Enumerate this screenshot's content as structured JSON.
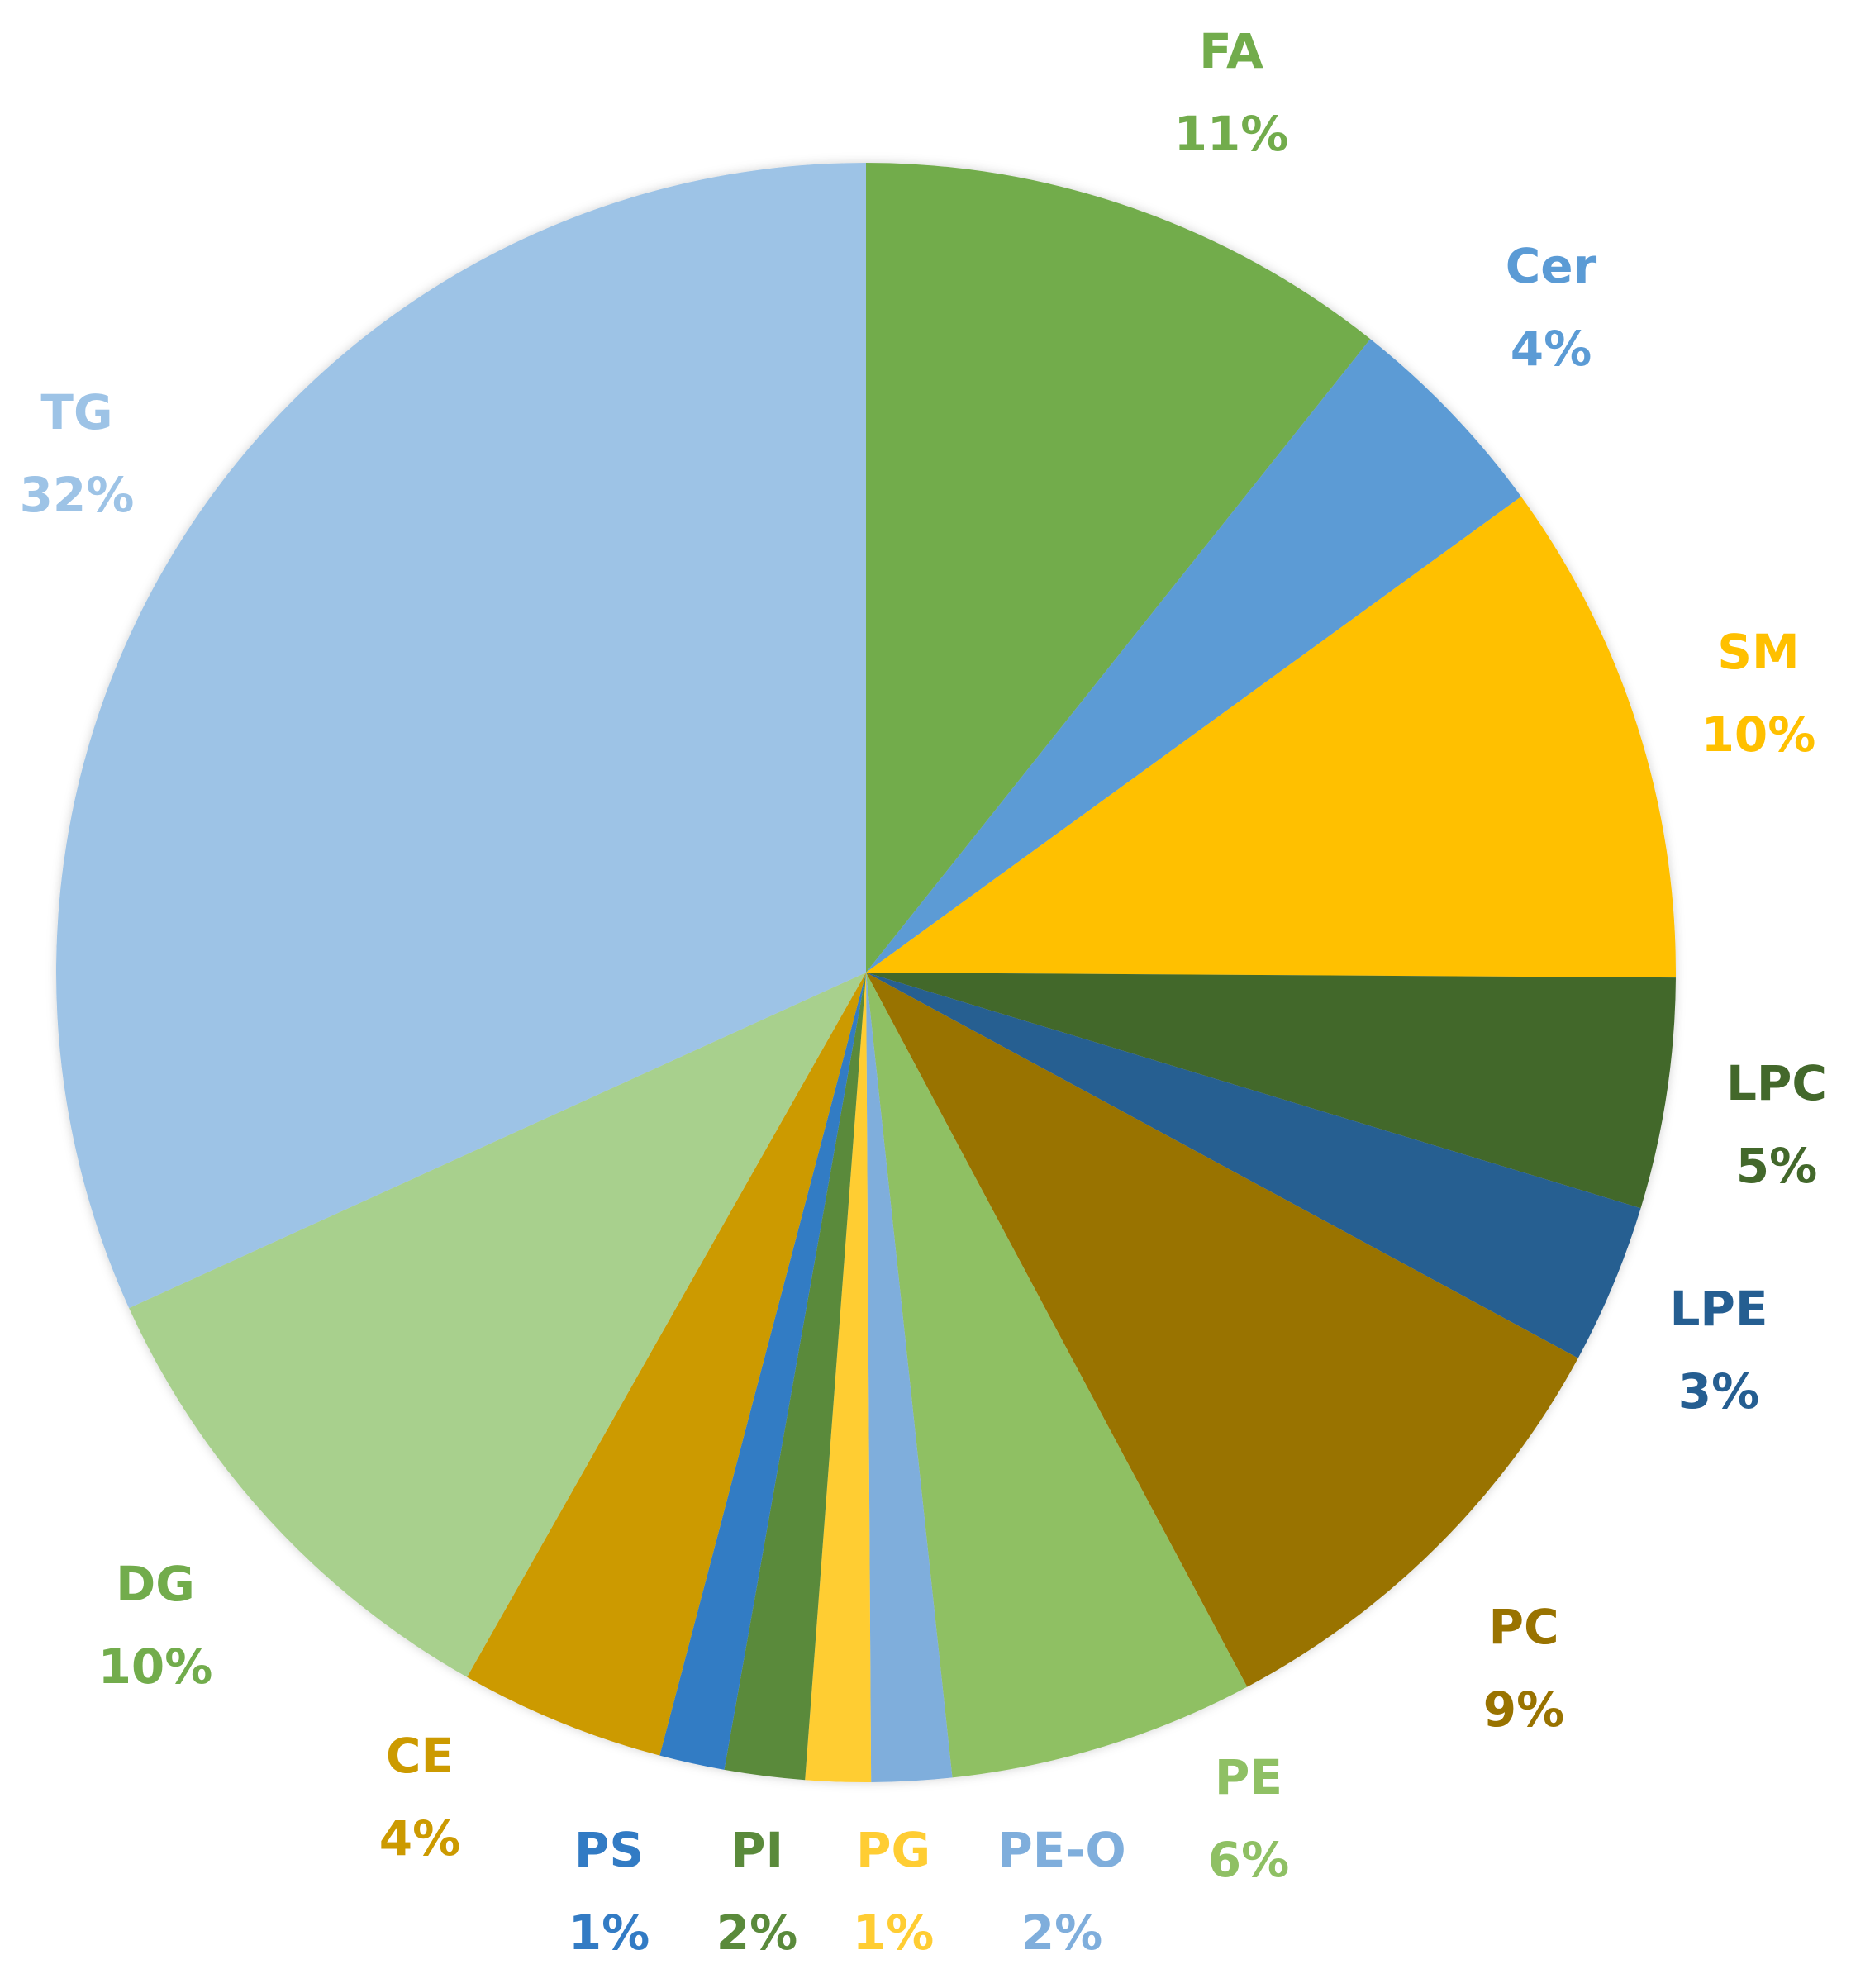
{
  "chart_data": {
    "type": "pie",
    "start_angle_deg": 0,
    "direction": "clockwise",
    "slices": [
      {
        "label": "FA",
        "pct_label": "11%",
        "value": 10.7,
        "color": "#72ac4c",
        "label_color": "#72ac4c"
      },
      {
        "label": "Cer",
        "pct_label": "4%",
        "value": 4.3,
        "color": "#5b9bd5",
        "label_color": "#5b9bd5"
      },
      {
        "label": "SM",
        "pct_label": "10%",
        "value": 10.1,
        "color": "#ffc000",
        "label_color": "#ffc000"
      },
      {
        "label": "LPC",
        "pct_label": "5%",
        "value": 4.6,
        "color": "#43682b",
        "label_color": "#43682b"
      },
      {
        "label": "LPE",
        "pct_label": "3%",
        "value": 3.2,
        "color": "#255e91",
        "label_color": "#255e91"
      },
      {
        "label": "PC",
        "pct_label": "9%",
        "value": 9.3,
        "color": "#997300",
        "label_color": "#997300"
      },
      {
        "label": "PE",
        "pct_label": "6%",
        "value": 6.1,
        "color": "#8fc064",
        "label_color": "#8fc064"
      },
      {
        "label": "PE-O",
        "pct_label": "2%",
        "value": 1.6,
        "color": "#7faedc",
        "label_color": "#7faedc"
      },
      {
        "label": "PG",
        "pct_label": "1%",
        "value": 1.3,
        "color": "#ffcd33",
        "label_color": "#ffcd33"
      },
      {
        "label": "PI",
        "pct_label": "2%",
        "value": 1.6,
        "color": "#5a8a3b",
        "label_color": "#5a8a3b"
      },
      {
        "label": "PS",
        "pct_label": "1%",
        "value": 1.3,
        "color": "#327bc4",
        "label_color": "#327bc4"
      },
      {
        "label": "CE",
        "pct_label": "4%",
        "value": 4.1,
        "color": "#cc9a00",
        "label_color": "#cc9a00"
      },
      {
        "label": "DG",
        "pct_label": "10%",
        "value": 10.0,
        "color": "#a8d08d",
        "label_color": "#72ac4c"
      },
      {
        "label": "TG",
        "pct_label": "32%",
        "value": 31.8,
        "color": "#9dc3e6",
        "label_color": "#9dc3e6"
      }
    ]
  }
}
